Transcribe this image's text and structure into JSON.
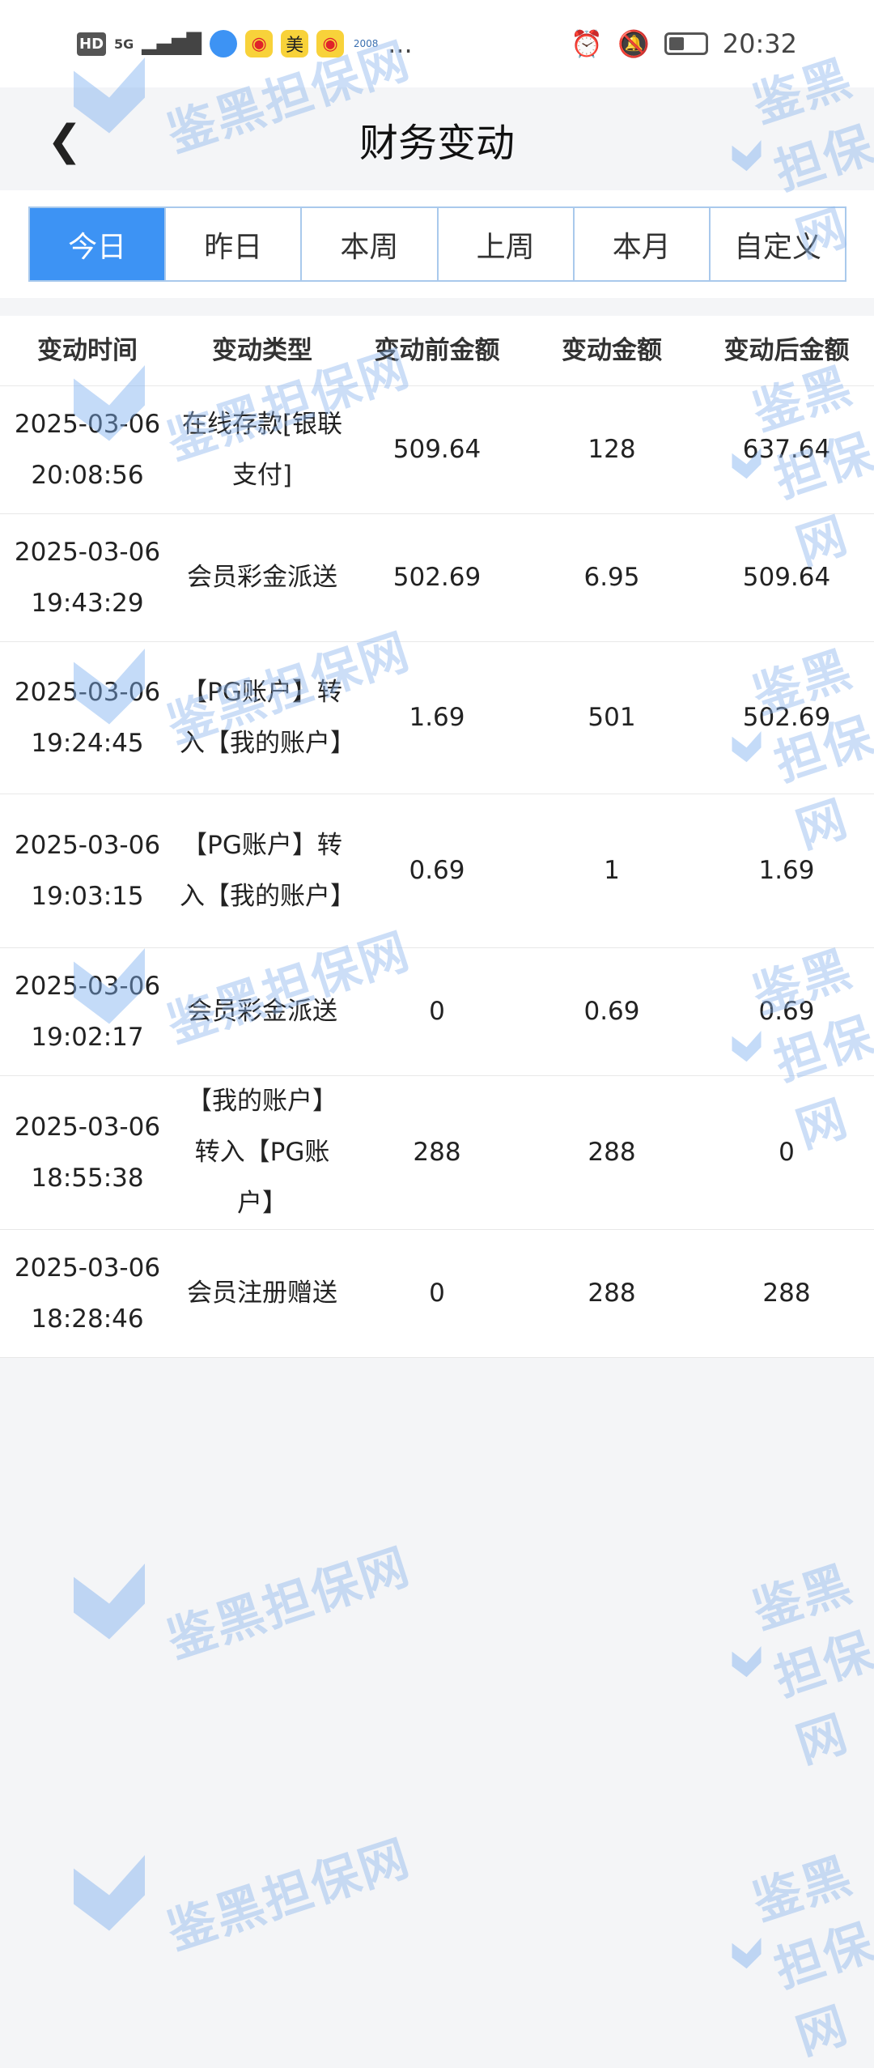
{
  "status_bar": {
    "time": "20:32",
    "network": "5G",
    "icons": [
      "hd-icon",
      "signal-icon",
      "browser-icon",
      "weibo-icon",
      "meituan-icon",
      "weibo-icon",
      "2008-app-icon",
      "more-icon",
      "alarm-icon",
      "mute-icon",
      "battery-icon"
    ],
    "meituan_label": "美",
    "more": "..."
  },
  "header": {
    "title": "财务变动",
    "back_icon": "chevron-left-icon"
  },
  "tabs": [
    {
      "label": "今日",
      "active": true
    },
    {
      "label": "昨日"
    },
    {
      "label": "本周"
    },
    {
      "label": "上周"
    },
    {
      "label": "本月"
    },
    {
      "label": "自定义"
    }
  ],
  "colors": {
    "accent": "#3d93f4",
    "tab_border": "#a9c9ec",
    "background": "#f4f5f7"
  },
  "table": {
    "headers": [
      "变动时间",
      "变动类型",
      "变动前金额",
      "变动金额",
      "变动后金额"
    ],
    "rows": [
      {
        "date": "2025-03-06",
        "time": "20:08:56",
        "type": "在线存款[银联支付]",
        "before": "509.64",
        "amount": "128",
        "after": "637.64"
      },
      {
        "date": "2025-03-06",
        "time": "19:43:29",
        "type": "会员彩金派送",
        "before": "502.69",
        "amount": "6.95",
        "after": "509.64"
      },
      {
        "date": "2025-03-06",
        "time": "19:24:45",
        "type": "【PG账户】转入【我的账户】",
        "before": "1.69",
        "amount": "501",
        "after": "502.69"
      },
      {
        "date": "2025-03-06",
        "time": "19:03:15",
        "type": "【PG账户】转入【我的账户】",
        "before": "0.69",
        "amount": "1",
        "after": "1.69"
      },
      {
        "date": "2025-03-06",
        "time": "19:02:17",
        "type": "会员彩金派送",
        "before": "0",
        "amount": "0.69",
        "after": "0.69"
      },
      {
        "date": "2025-03-06",
        "time": "18:55:38",
        "type": "【我的账户】转入【PG账户】",
        "before": "288",
        "amount": "288",
        "after": "0"
      },
      {
        "date": "2025-03-06",
        "time": "18:28:46",
        "type": "会员注册赠送",
        "before": "0",
        "amount": "288",
        "after": "288"
      }
    ]
  },
  "watermark": {
    "text": "鉴黑担保网"
  }
}
